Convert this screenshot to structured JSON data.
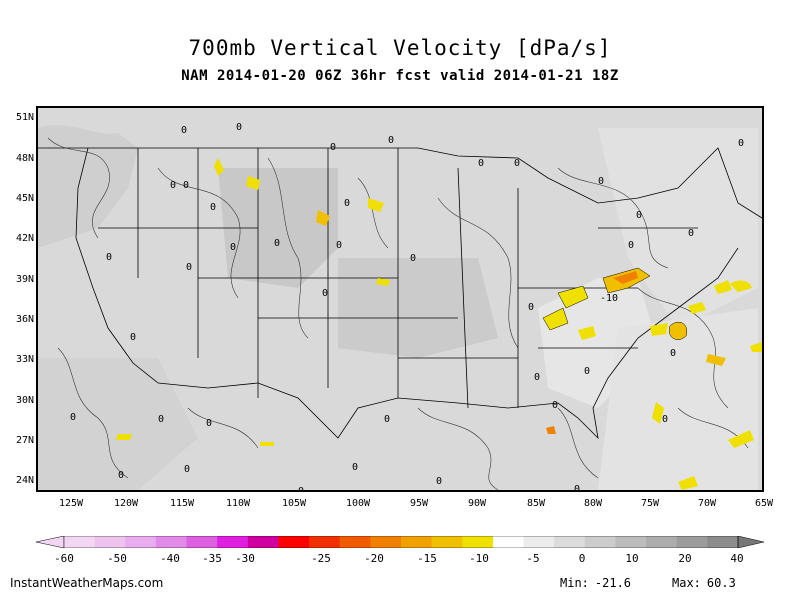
{
  "title": "700mb Vertical Velocity [dPa/s]",
  "subtitle": "NAM 2014-01-20 06Z 36hr fcst valid 2014-01-21 18Z",
  "lat_labels": [
    "51N",
    "48N",
    "45N",
    "42N",
    "39N",
    "36N",
    "33N",
    "30N",
    "27N",
    "24N"
  ],
  "lon_labels": [
    "125W",
    "120W",
    "115W",
    "110W",
    "105W",
    "100W",
    "95W",
    "90W",
    "85W",
    "80W",
    "75W",
    "70W",
    "65W"
  ],
  "map_contour_labels": [
    "0",
    "-10"
  ],
  "colors": {
    "base_gray": "#d9d9d9",
    "land_gray": "#c9c9c9",
    "light_gray": "#e6e6e6",
    "rising_yellow": "#f0e000",
    "rising_orange": "#f0a000",
    "rising_dark_orange": "#e07000"
  },
  "colorbar": {
    "labels": [
      "-60",
      "-50",
      "-40",
      "-35",
      "-30",
      "-25",
      "-20",
      "-15",
      "-10",
      "-5",
      "0",
      "10",
      "20",
      "40"
    ],
    "colors": [
      "#f3d6f3",
      "#eec4ee",
      "#e8acef",
      "#e28ae8",
      "#dc60e0",
      "#e020e0",
      "#d000a0",
      "#ff0000",
      "#f03000",
      "#f05a00",
      "#f08000",
      "#f0a000",
      "#f0c000",
      "#f0e000",
      "#fefefe",
      "#ececec",
      "#dcdcdc",
      "#cccccc",
      "#bcbcbc",
      "#acacac",
      "#9c9c9c",
      "#8c8c8c"
    ]
  },
  "footer": {
    "source": "InstantWeatherMaps.com",
    "min_label": "Min:",
    "min_value": "-21.6",
    "max_label": "Max:",
    "max_value": "60.3"
  }
}
